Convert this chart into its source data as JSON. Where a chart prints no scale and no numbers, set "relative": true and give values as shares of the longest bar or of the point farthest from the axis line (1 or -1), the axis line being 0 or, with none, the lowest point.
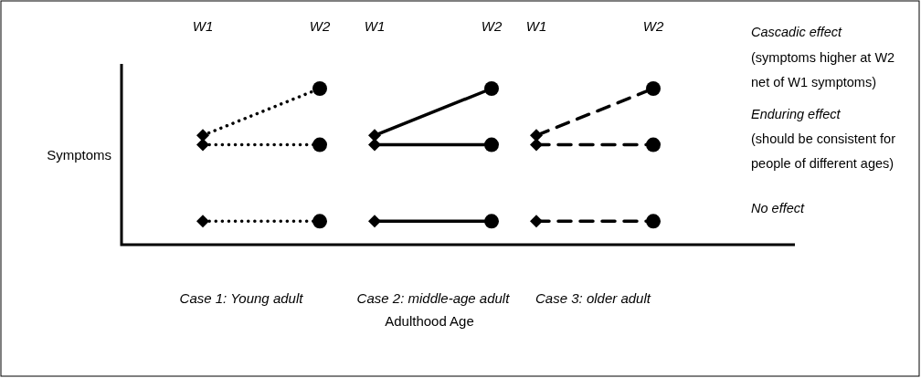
{
  "chart_data": [
    {
      "type": "line",
      "relative": true,
      "ylabel": "Symptoms",
      "xlabel": "Case 1: Young adult",
      "categories": [
        "W1",
        "W2"
      ],
      "series": [
        {
          "color": "#000000",
          "line_style": "dotted",
          "values": [
            0.15,
            0.15
          ]
        },
        {
          "color": "#000000",
          "line_style": "dotted",
          "values": [
            0.64,
            0.64
          ]
        },
        {
          "color": "#000000",
          "line_style": "dotted",
          "values": [
            0.7,
            1
          ]
        },
        {
          "type": "scatter",
          "color": "#000000",
          "marker": "diamond",
          "values": [
            0.15,
            null
          ]
        },
        {
          "type": "scatter",
          "color": "#000000",
          "marker": "diamond",
          "values": [
            0.64,
            null
          ]
        },
        {
          "type": "scatter",
          "color": "#000000",
          "marker": "diamond",
          "values": [
            0.7,
            null
          ]
        },
        {
          "type": "scatter",
          "color": "#000000",
          "marker": "circle",
          "values": [
            null,
            0.15
          ]
        },
        {
          "type": "scatter",
          "color": "#000000",
          "marker": "circle",
          "values": [
            null,
            0.64
          ]
        },
        {
          "type": "scatter",
          "color": "#000000",
          "marker": "circle",
          "values": [
            null,
            1
          ]
        }
      ]
    },
    {
      "type": "line",
      "relative": true,
      "xlabel": "Case 2: middle-age adult",
      "categories": [
        "W1",
        "W2"
      ],
      "series": [
        {
          "color": "#000000",
          "line_style": "solid",
          "values": [
            0.15,
            0.15
          ]
        },
        {
          "color": "#000000",
          "line_style": "solid",
          "values": [
            0.64,
            0.64
          ]
        },
        {
          "color": "#000000",
          "line_style": "solid",
          "values": [
            0.7,
            1
          ]
        },
        {
          "type": "scatter",
          "color": "#000000",
          "marker": "diamond",
          "values": [
            0.15,
            null
          ]
        },
        {
          "type": "scatter",
          "color": "#000000",
          "marker": "diamond",
          "values": [
            0.64,
            null
          ]
        },
        {
          "type": "scatter",
          "color": "#000000",
          "marker": "diamond",
          "values": [
            0.7,
            null
          ]
        },
        {
          "type": "scatter",
          "color": "#000000",
          "marker": "circle",
          "values": [
            null,
            0.15
          ]
        },
        {
          "type": "scatter",
          "color": "#000000",
          "marker": "circle",
          "values": [
            null,
            0.64
          ]
        },
        {
          "type": "scatter",
          "color": "#000000",
          "marker": "circle",
          "values": [
            null,
            1
          ]
        }
      ],
      "annotations": [
        "Adulthood Age"
      ]
    },
    {
      "type": "line",
      "relative": true,
      "xlabel": "Case 3: older adult",
      "categories": [
        "W1",
        "W2"
      ],
      "series": [
        {
          "color": "#000000",
          "line_style": "dashed",
          "values": [
            0.15,
            0.15
          ]
        },
        {
          "color": "#000000",
          "line_style": "dashed",
          "values": [
            0.64,
            0.64
          ]
        },
        {
          "color": "#000000",
          "line_style": "dashed",
          "values": [
            0.7,
            1
          ]
        },
        {
          "type": "scatter",
          "color": "#000000",
          "marker": "diamond",
          "values": [
            0.15,
            null
          ]
        },
        {
          "type": "scatter",
          "color": "#000000",
          "marker": "diamond",
          "values": [
            0.64,
            null
          ]
        },
        {
          "type": "scatter",
          "color": "#000000",
          "marker": "diamond",
          "values": [
            0.7,
            null
          ]
        },
        {
          "type": "scatter",
          "color": "#000000",
          "marker": "circle",
          "values": [
            null,
            0.15
          ]
        },
        {
          "type": "scatter",
          "color": "#000000",
          "marker": "circle",
          "values": [
            null,
            0.64
          ]
        },
        {
          "type": "scatter",
          "color": "#000000",
          "marker": "circle",
          "values": [
            null,
            1
          ]
        }
      ],
      "annotations": [
        "Cascadic effect",
        "(symptoms higher at W2",
        "net of W1 symptoms)",
        "Enduring effect",
        "(should be consistent for",
        "people of different ages)",
        "No effect"
      ]
    }
  ]
}
